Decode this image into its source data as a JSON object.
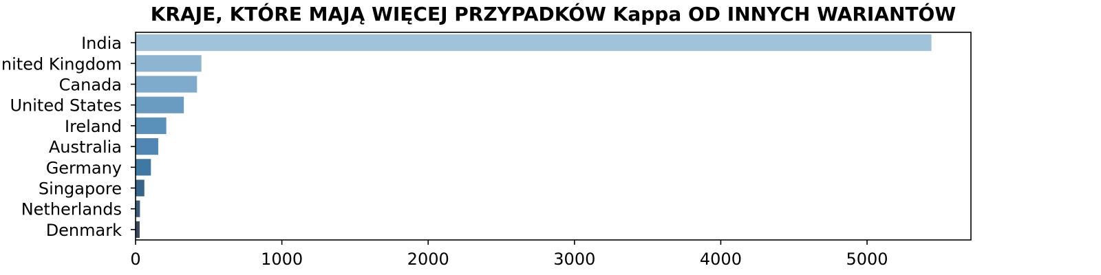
{
  "chart_data": {
    "type": "bar",
    "orientation": "horizontal",
    "title": "KRAJE, KTÓRE MAJĄ WIĘCEJ PRZYPADKÓW Kappa OD INNYCH WARIANTÓW",
    "xlabel": "",
    "ylabel": "",
    "categories": [
      "United Kingdom",
      "India",
      "Canada",
      "United States",
      "Ireland",
      "Australia",
      "Germany",
      "Singapore",
      "Netherlands",
      "Denmark"
    ],
    "values": [
      450,
      5440,
      420,
      330,
      210,
      155,
      105,
      60,
      30,
      28
    ],
    "xlim": [
      0,
      5710
    ],
    "xticks": [
      0,
      1000,
      2000,
      3000,
      4000,
      5000
    ],
    "grid": false,
    "legend": "none",
    "colors": [
      "#8db4d0",
      "#a0c3da",
      "#7eaacb",
      "#6a9cc2",
      "#5a91bb",
      "#4f86b3",
      "#3f79a3",
      "#35658a",
      "#3a5a78",
      "#38495f"
    ]
  }
}
